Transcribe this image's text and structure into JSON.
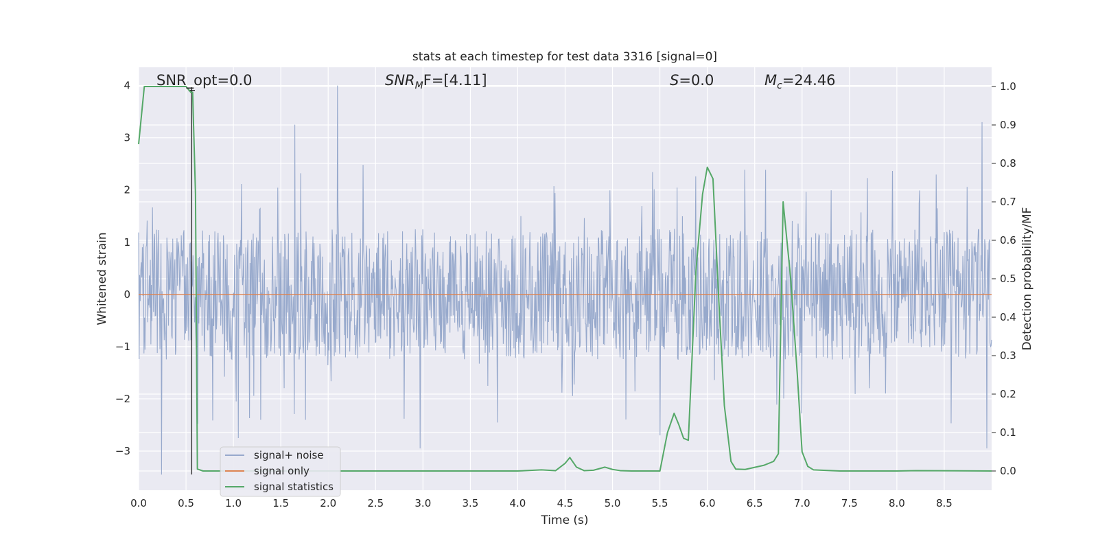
{
  "chart_data": {
    "type": "line",
    "title": "stats at each timestep for test data 3316 [signal=0]",
    "xlabel": "Time (s)",
    "ylabel_left": "Whitened strain",
    "ylabel_right": "Detection probability/MF",
    "xlim": [
      0,
      9.0
    ],
    "ylim_left": [
      -3.75,
      4.35
    ],
    "ylim_right": [
      -0.05,
      1.05
    ],
    "x_ticks": [
      "0.0",
      "0.5",
      "1.0",
      "1.5",
      "2.0",
      "2.5",
      "3.0",
      "3.5",
      "4.0",
      "4.5",
      "5.0",
      "5.5",
      "6.0",
      "6.5",
      "7.0",
      "7.5",
      "8.0",
      "8.5"
    ],
    "y_ticks_left": [
      "−3",
      "−2",
      "−1",
      "0",
      "1",
      "2",
      "3",
      "4"
    ],
    "y_ticks_right": [
      "0.0",
      "0.1",
      "0.2",
      "0.3",
      "0.4",
      "0.5",
      "0.6",
      "0.7",
      "0.8",
      "0.9",
      "1.0"
    ],
    "grid": true,
    "legend_position": "lower-left",
    "annotations": {
      "snr_opt": "SNR_opt=0.0",
      "snr_mf": "SNR",
      "snr_mf_sub": "M",
      "snr_mf_rest": "F=[4.11]",
      "s_label": "S",
      "s_rest": "=0.0",
      "mc_label": "M",
      "mc_sub": "c",
      "mc_rest": "=24.46"
    },
    "marker": {
      "x": 0.56,
      "label": "+"
    },
    "series": [
      {
        "name": "signal+ noise",
        "color": "#97a9cc",
        "axis": "left",
        "description_points": "noise band approx ±1.3 whitened strain, spikes to about ±2.5, max 4.0 at 2.1 s, min -3.45 at 0.24 s",
        "band": 1.25,
        "envelope": 2.5,
        "spikes": [
          [
            0.24,
            -3.45
          ],
          [
            2.1,
            4.0
          ],
          [
            1.65,
            3.25
          ],
          [
            8.9,
            3.3
          ],
          [
            2.97,
            -2.95
          ],
          [
            1.05,
            -2.75
          ],
          [
            8.95,
            -2.95
          ],
          [
            5.5,
            -2.7
          ]
        ]
      },
      {
        "name": "signal only",
        "color": "#dd8452",
        "axis": "left",
        "x": [
          0.0,
          9.0
        ],
        "y": [
          0.0,
          0.0
        ]
      },
      {
        "name": "signal statistics",
        "color": "#55a868",
        "axis": "right",
        "x": [
          0.0,
          0.06,
          0.12,
          0.5,
          0.55,
          0.57,
          0.6,
          0.62,
          0.68,
          4.0,
          4.25,
          4.4,
          4.5,
          4.55,
          4.62,
          4.7,
          4.8,
          4.92,
          5.0,
          5.08,
          5.2,
          5.5,
          5.58,
          5.65,
          5.7,
          5.75,
          5.8,
          5.88,
          5.95,
          6.0,
          6.06,
          6.12,
          6.18,
          6.25,
          6.3,
          6.4,
          6.6,
          6.7,
          6.75,
          6.8,
          6.88,
          6.95,
          7.0,
          7.06,
          7.12,
          7.4,
          8.0,
          8.2,
          9.0
        ],
        "y": [
          0.85,
          1.0,
          1.0,
          1.0,
          0.985,
          0.985,
          0.72,
          0.005,
          0.0,
          0.0,
          0.003,
          0.001,
          0.02,
          0.035,
          0.01,
          0.001,
          0.002,
          0.01,
          0.004,
          0.001,
          0.0,
          0.0,
          0.1,
          0.15,
          0.12,
          0.085,
          0.08,
          0.52,
          0.72,
          0.79,
          0.76,
          0.45,
          0.17,
          0.025,
          0.005,
          0.004,
          0.015,
          0.025,
          0.045,
          0.7,
          0.5,
          0.25,
          0.05,
          0.012,
          0.003,
          0.0,
          0.0,
          0.001,
          0.0
        ]
      }
    ]
  }
}
